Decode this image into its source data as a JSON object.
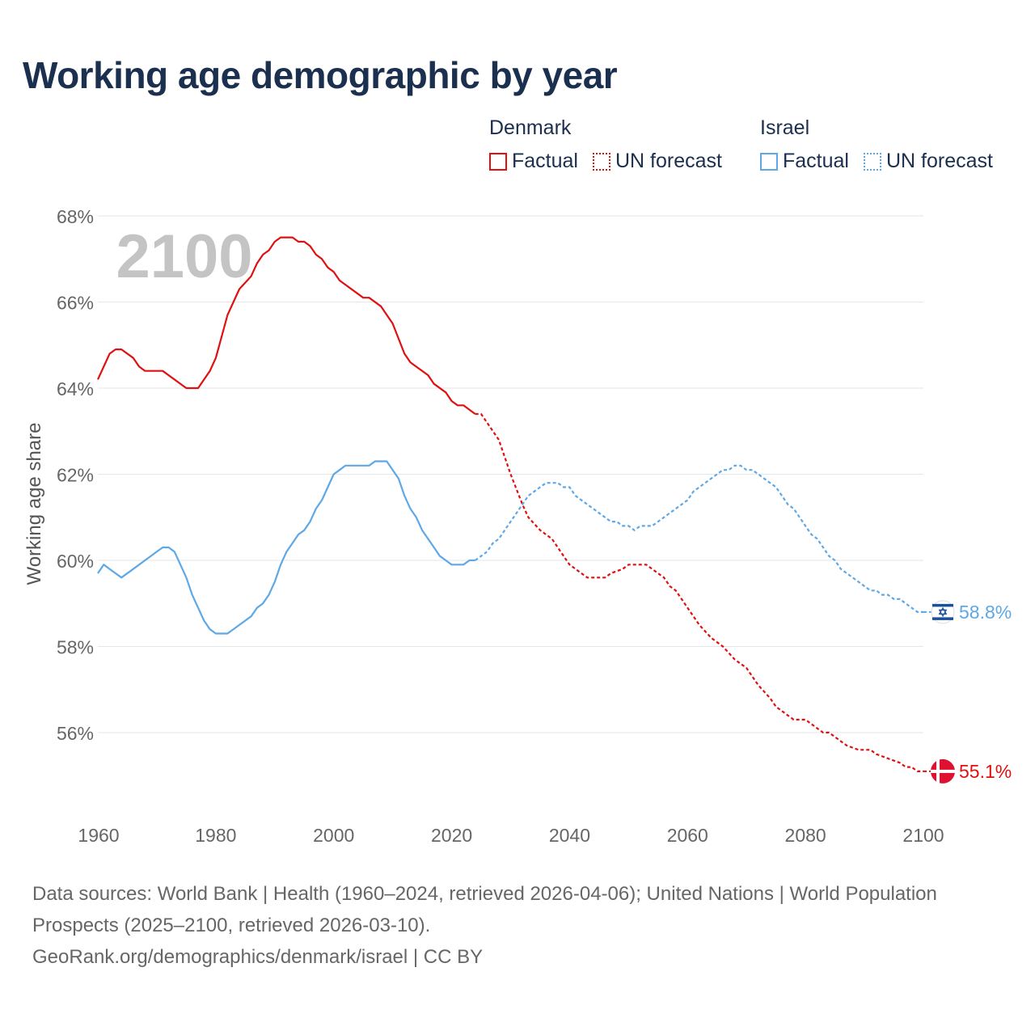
{
  "title": "Working age demographic by year",
  "legend": {
    "groups": [
      {
        "name": "Denmark",
        "factual_label": "Factual",
        "forecast_label": "UN forecast",
        "color": "#e01010"
      },
      {
        "name": "Israel",
        "factual_label": "Factual",
        "forecast_label": "UN forecast",
        "color": "#5ea8e6"
      }
    ]
  },
  "year_overlay": "2100",
  "footer": {
    "sources": "Data sources: World Bank | Health (1960–2024, retrieved 2026-04-06); United Nations | World Population Prospects (2025–2100, retrieved 2026-03-10).",
    "credit": "GeoRank.org/demographics/denmark/israel | CC BY"
  },
  "chart_data": {
    "type": "line",
    "title": "Working age demographic by year",
    "xlabel": "",
    "ylabel": "Working age share",
    "xlim": [
      1960,
      2100
    ],
    "ylim": [
      54.5,
      68
    ],
    "x_ticks": [
      1960,
      1980,
      2000,
      2020,
      2040,
      2060,
      2080,
      2100
    ],
    "x_tick_labels": [
      "1960",
      "1980",
      "2000",
      "2020",
      "2040",
      "2060",
      "2080",
      "2100"
    ],
    "y_ticks": [
      56,
      58,
      60,
      62,
      64,
      66,
      68
    ],
    "y_tick_labels": [
      "56%",
      "58%",
      "60%",
      "62%",
      "64%",
      "66%",
      "68%"
    ],
    "grid": true,
    "forecast_start": 2024,
    "series": [
      {
        "name": "Denmark",
        "color": "#e01010",
        "end_label": "55.1%",
        "flag": "denmark-flag",
        "points": [
          [
            1960,
            64.2
          ],
          [
            1962,
            64.8
          ],
          [
            1963,
            64.9
          ],
          [
            1964,
            64.9
          ],
          [
            1966,
            64.7
          ],
          [
            1967,
            64.5
          ],
          [
            1968,
            64.4
          ],
          [
            1971,
            64.4
          ],
          [
            1975,
            64.0
          ],
          [
            1977,
            64.0
          ],
          [
            1979,
            64.4
          ],
          [
            1980,
            64.7
          ],
          [
            1982,
            65.7
          ],
          [
            1984,
            66.3
          ],
          [
            1986,
            66.6
          ],
          [
            1987,
            66.9
          ],
          [
            1988,
            67.1
          ],
          [
            1989,
            67.2
          ],
          [
            1990,
            67.4
          ],
          [
            1991,
            67.5
          ],
          [
            1993,
            67.5
          ],
          [
            1994,
            67.4
          ],
          [
            1995,
            67.4
          ],
          [
            1996,
            67.3
          ],
          [
            1997,
            67.1
          ],
          [
            1998,
            67.0
          ],
          [
            1999,
            66.8
          ],
          [
            2000,
            66.7
          ],
          [
            2001,
            66.5
          ],
          [
            2005,
            66.1
          ],
          [
            2006,
            66.1
          ],
          [
            2008,
            65.9
          ],
          [
            2010,
            65.5
          ],
          [
            2012,
            64.8
          ],
          [
            2013,
            64.6
          ],
          [
            2016,
            64.3
          ],
          [
            2017,
            64.1
          ],
          [
            2019,
            63.9
          ],
          [
            2020,
            63.7
          ],
          [
            2021,
            63.6
          ],
          [
            2022,
            63.6
          ],
          [
            2024,
            63.4
          ],
          [
            2025,
            63.4
          ],
          [
            2026,
            63.2
          ],
          [
            2028,
            62.8
          ],
          [
            2030,
            62.0
          ],
          [
            2032,
            61.3
          ],
          [
            2033,
            61.0
          ],
          [
            2035,
            60.7
          ],
          [
            2037,
            60.5
          ],
          [
            2039,
            60.1
          ],
          [
            2040,
            59.9
          ],
          [
            2042,
            59.7
          ],
          [
            2043,
            59.6
          ],
          [
            2046,
            59.6
          ],
          [
            2047,
            59.7
          ],
          [
            2049,
            59.8
          ],
          [
            2050,
            59.9
          ],
          [
            2053,
            59.9
          ],
          [
            2054,
            59.8
          ],
          [
            2056,
            59.6
          ],
          [
            2057,
            59.4
          ],
          [
            2058,
            59.3
          ],
          [
            2060,
            58.9
          ],
          [
            2062,
            58.5
          ],
          [
            2064,
            58.2
          ],
          [
            2066,
            58.0
          ],
          [
            2068,
            57.7
          ],
          [
            2070,
            57.5
          ],
          [
            2072,
            57.1
          ],
          [
            2074,
            56.8
          ],
          [
            2075,
            56.6
          ],
          [
            2077,
            56.4
          ],
          [
            2078,
            56.3
          ],
          [
            2080,
            56.3
          ],
          [
            2082,
            56.1
          ],
          [
            2083,
            56.0
          ],
          [
            2084,
            56.0
          ],
          [
            2086,
            55.8
          ],
          [
            2087,
            55.7
          ],
          [
            2089,
            55.6
          ],
          [
            2091,
            55.6
          ],
          [
            2092,
            55.5
          ],
          [
            2094,
            55.4
          ],
          [
            2096,
            55.3
          ],
          [
            2097,
            55.2
          ],
          [
            2098,
            55.2
          ],
          [
            2099,
            55.1
          ],
          [
            2100,
            55.1
          ]
        ]
      },
      {
        "name": "Israel",
        "color": "#5ea8e6",
        "end_label": "58.8%",
        "flag": "israel-flag",
        "points": [
          [
            1960,
            59.7
          ],
          [
            1961,
            59.9
          ],
          [
            1962,
            59.8
          ],
          [
            1964,
            59.6
          ],
          [
            1966,
            59.8
          ],
          [
            1970,
            60.2
          ],
          [
            1971,
            60.3
          ],
          [
            1972,
            60.3
          ],
          [
            1973,
            60.2
          ],
          [
            1974,
            59.9
          ],
          [
            1975,
            59.6
          ],
          [
            1976,
            59.2
          ],
          [
            1977,
            58.9
          ],
          [
            1978,
            58.6
          ],
          [
            1979,
            58.4
          ],
          [
            1980,
            58.3
          ],
          [
            1982,
            58.3
          ],
          [
            1984,
            58.5
          ],
          [
            1986,
            58.7
          ],
          [
            1987,
            58.9
          ],
          [
            1988,
            59.0
          ],
          [
            1989,
            59.2
          ],
          [
            1990,
            59.5
          ],
          [
            1991,
            59.9
          ],
          [
            1992,
            60.2
          ],
          [
            1993,
            60.4
          ],
          [
            1994,
            60.6
          ],
          [
            1995,
            60.7
          ],
          [
            1996,
            60.9
          ],
          [
            1997,
            61.2
          ],
          [
            1998,
            61.4
          ],
          [
            1999,
            61.7
          ],
          [
            2000,
            62.0
          ],
          [
            2001,
            62.1
          ],
          [
            2002,
            62.2
          ],
          [
            2006,
            62.2
          ],
          [
            2007,
            62.3
          ],
          [
            2009,
            62.3
          ],
          [
            2010,
            62.1
          ],
          [
            2011,
            61.9
          ],
          [
            2012,
            61.5
          ],
          [
            2013,
            61.2
          ],
          [
            2014,
            61.0
          ],
          [
            2015,
            60.7
          ],
          [
            2016,
            60.5
          ],
          [
            2017,
            60.3
          ],
          [
            2018,
            60.1
          ],
          [
            2019,
            60.0
          ],
          [
            2020,
            59.9
          ],
          [
            2022,
            59.9
          ],
          [
            2023,
            60.0
          ],
          [
            2024,
            60.0
          ],
          [
            2025,
            60.1
          ],
          [
            2026,
            60.2
          ],
          [
            2027,
            60.4
          ],
          [
            2028,
            60.5
          ],
          [
            2029,
            60.7
          ],
          [
            2030,
            60.9
          ],
          [
            2031,
            61.1
          ],
          [
            2032,
            61.3
          ],
          [
            2033,
            61.5
          ],
          [
            2034,
            61.6
          ],
          [
            2035,
            61.7
          ],
          [
            2036,
            61.8
          ],
          [
            2038,
            61.8
          ],
          [
            2039,
            61.7
          ],
          [
            2040,
            61.7
          ],
          [
            2041,
            61.5
          ],
          [
            2042,
            61.4
          ],
          [
            2044,
            61.2
          ],
          [
            2046,
            61.0
          ],
          [
            2047,
            60.9
          ],
          [
            2048,
            60.9
          ],
          [
            2049,
            60.8
          ],
          [
            2050,
            60.8
          ],
          [
            2051,
            60.7
          ],
          [
            2052,
            60.8
          ],
          [
            2053,
            60.8
          ],
          [
            2054,
            60.8
          ],
          [
            2056,
            61.0
          ],
          [
            2058,
            61.2
          ],
          [
            2060,
            61.4
          ],
          [
            2061,
            61.6
          ],
          [
            2062,
            61.7
          ],
          [
            2064,
            61.9
          ],
          [
            2066,
            62.1
          ],
          [
            2067,
            62.1
          ],
          [
            2068,
            62.2
          ],
          [
            2069,
            62.2
          ],
          [
            2070,
            62.1
          ],
          [
            2071,
            62.1
          ],
          [
            2072,
            62.0
          ],
          [
            2074,
            61.8
          ],
          [
            2075,
            61.7
          ],
          [
            2076,
            61.5
          ],
          [
            2077,
            61.3
          ],
          [
            2078,
            61.2
          ],
          [
            2079,
            61.0
          ],
          [
            2080,
            60.8
          ],
          [
            2081,
            60.6
          ],
          [
            2082,
            60.5
          ],
          [
            2083,
            60.3
          ],
          [
            2084,
            60.1
          ],
          [
            2085,
            60.0
          ],
          [
            2086,
            59.8
          ],
          [
            2087,
            59.7
          ],
          [
            2088,
            59.6
          ],
          [
            2090,
            59.4
          ],
          [
            2091,
            59.3
          ],
          [
            2092,
            59.3
          ],
          [
            2093,
            59.2
          ],
          [
            2094,
            59.2
          ],
          [
            2095,
            59.1
          ],
          [
            2096,
            59.1
          ],
          [
            2097,
            59.0
          ],
          [
            2098,
            58.9
          ],
          [
            2099,
            58.8
          ],
          [
            2100,
            58.8
          ]
        ]
      }
    ]
  }
}
